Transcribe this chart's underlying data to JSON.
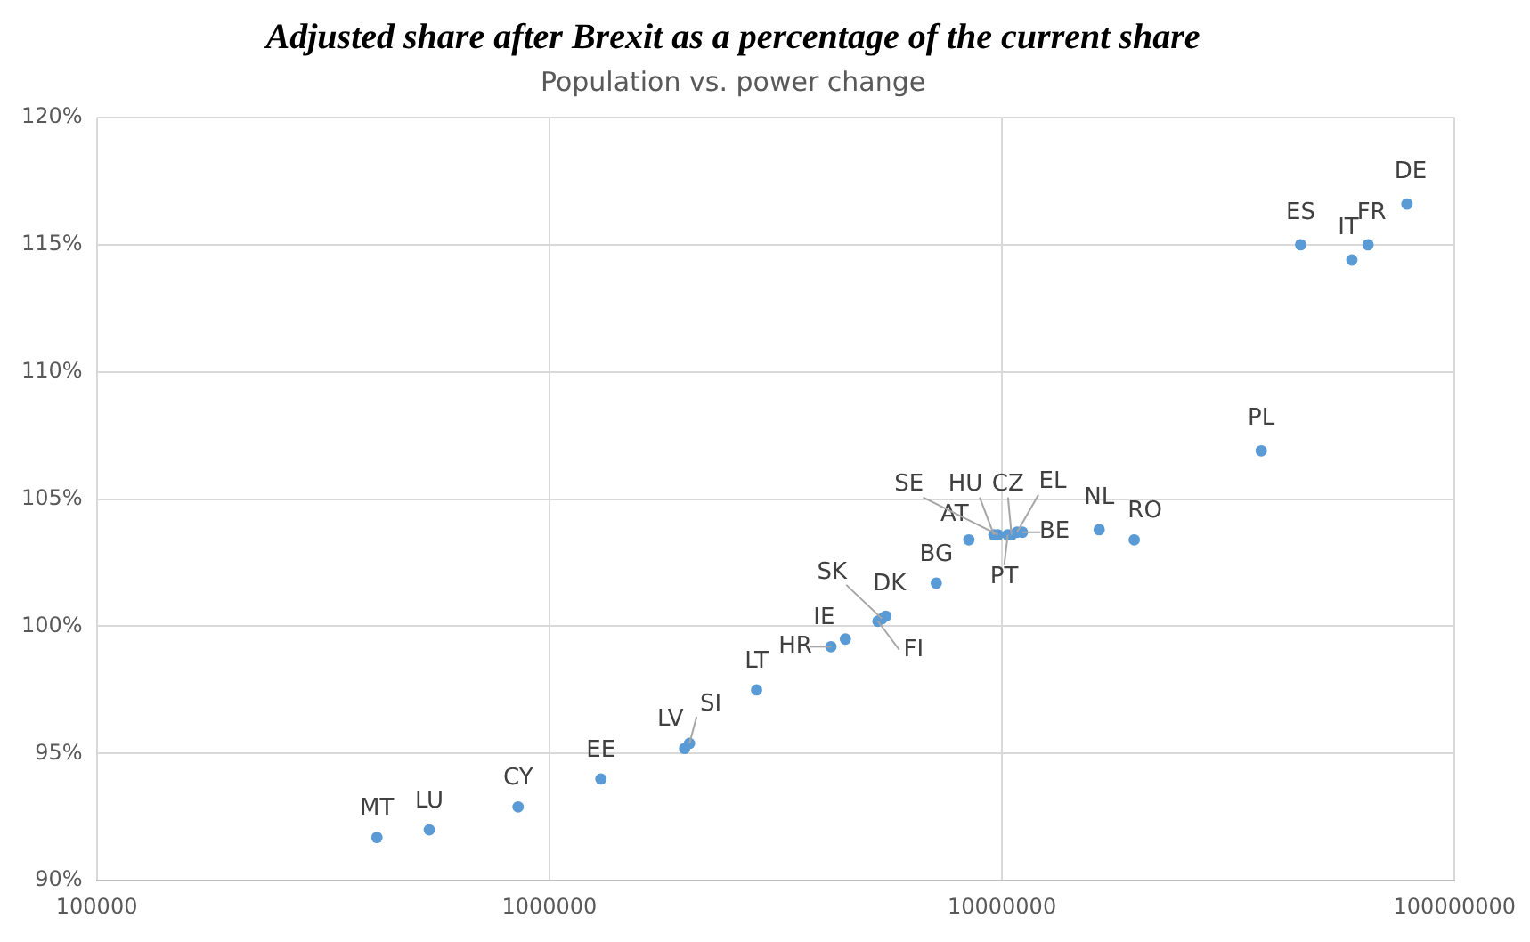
{
  "chart_data": {
    "type": "scatter",
    "title": "Adjusted share after Brexit as a percentage of the current share",
    "subtitle": "Population vs. power change",
    "log": "x",
    "grid": true,
    "marker": "circle",
    "legend": false,
    "xlim": [
      100000,
      100000000
    ],
    "xticks": [
      100000,
      1000000,
      10000000,
      100000000
    ],
    "ylim": [
      90,
      120
    ],
    "yticks": [
      {
        "value": 90,
        "label": "90%"
      },
      {
        "value": 95,
        "label": "95%"
      },
      {
        "value": 100,
        "label": "100%"
      },
      {
        "value": 105,
        "label": "105%"
      },
      {
        "value": 110,
        "label": "110%"
      },
      {
        "value": 115,
        "label": "115%"
      },
      {
        "value": 120,
        "label": "120%"
      }
    ],
    "series": [
      {
        "color": "#5b9bd5",
        "x": [
          416000,
          543000,
          853000,
          1300000,
          1990000,
          2040000,
          2870000,
          4190000,
          4510000,
          5320000,
          5430000,
          5540000,
          7160000,
          8450000,
          9600000,
          9800000,
          10300000,
          10500000,
          10800000,
          11100000,
          16400000,
          19600000,
          37400000,
          45700000,
          59300000,
          64400000,
          78500000
        ],
        "values": [
          91.7,
          92.0,
          92.9,
          94.0,
          95.2,
          95.4,
          97.5,
          99.2,
          99.5,
          100.2,
          100.3,
          100.4,
          101.7,
          103.4,
          103.6,
          103.6,
          103.6,
          103.6,
          103.7,
          103.7,
          103.8,
          103.4,
          106.9,
          115.0,
          114.4,
          115.0,
          116.6
        ],
        "value_labels": [
          "MT",
          "LU",
          "CY",
          "EE",
          "LV",
          "SI",
          "LT",
          "HR",
          "IE",
          "FI",
          "SK",
          "DK",
          "BG",
          "AT",
          "HU",
          "SE",
          "PT",
          "CZ",
          "EL",
          "BE",
          "NL",
          "RO",
          "PL",
          "ES",
          "IT",
          "FR",
          "DE"
        ]
      }
    ]
  }
}
